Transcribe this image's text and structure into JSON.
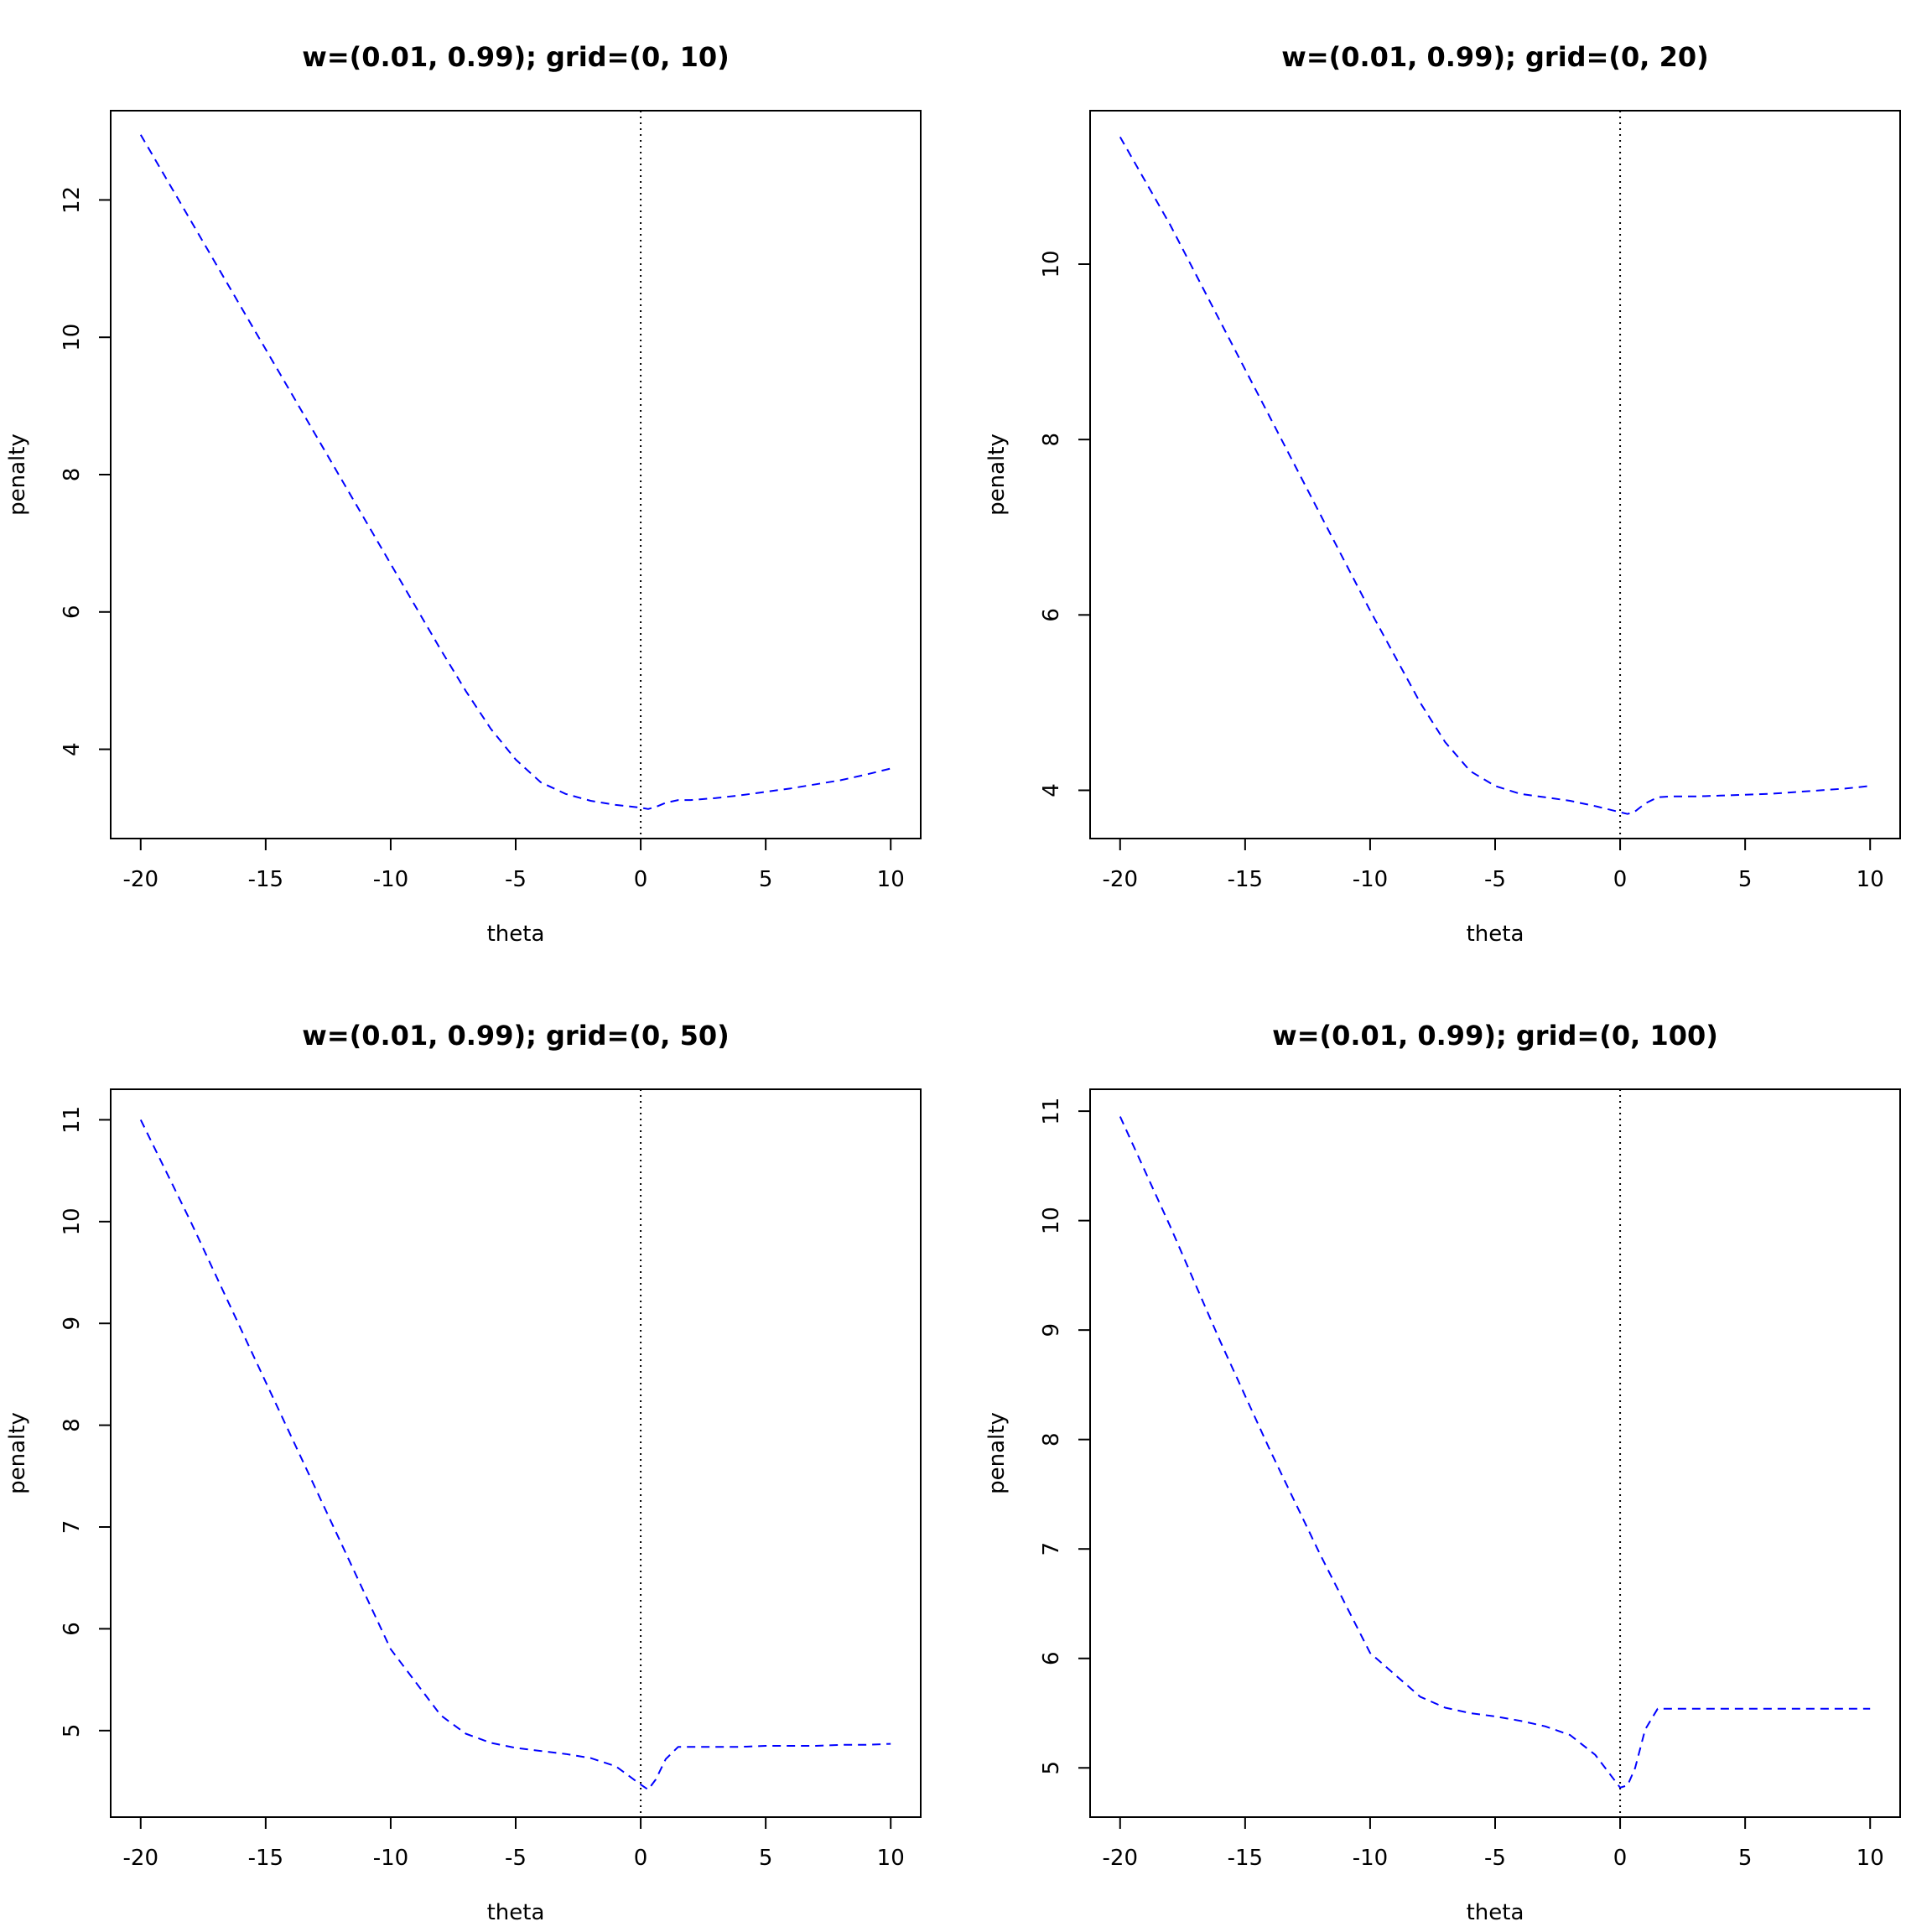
{
  "chart_data": [
    {
      "type": "line",
      "title": "w=(0.01, 0.99); grid=(0, 10)",
      "xlabel": "theta",
      "ylabel": "penalty",
      "xlim": [
        -21.2,
        11.2
      ],
      "ylim": [
        2.7,
        13.3
      ],
      "xticks": [
        -20,
        -15,
        -10,
        -5,
        0,
        5,
        10
      ],
      "yticks": [
        4,
        6,
        8,
        10,
        12
      ],
      "vline": 0,
      "series": [
        {
          "color": "#0000ff",
          "style": "dashed",
          "x": [
            -20,
            -18,
            -16,
            -14,
            -12,
            -10,
            -8,
            -7,
            -6,
            -5,
            -4,
            -3,
            -2,
            -1,
            0,
            0.3,
            0.6,
            1,
            1.5,
            2,
            3,
            4,
            5,
            6,
            7,
            8,
            9,
            10
          ],
          "y": [
            12.95,
            11.7,
            10.45,
            9.2,
            7.95,
            6.7,
            5.45,
            4.85,
            4.3,
            3.85,
            3.52,
            3.35,
            3.25,
            3.19,
            3.15,
            3.13,
            3.16,
            3.22,
            3.26,
            3.26,
            3.29,
            3.33,
            3.38,
            3.43,
            3.49,
            3.55,
            3.63,
            3.72
          ]
        }
      ]
    },
    {
      "type": "line",
      "title": "w=(0.01, 0.99); grid=(0, 20)",
      "xlabel": "theta",
      "ylabel": "penalty",
      "xlim": [
        -21.2,
        11.2
      ],
      "ylim": [
        3.45,
        11.75
      ],
      "xticks": [
        -20,
        -15,
        -10,
        -5,
        0,
        5,
        10
      ],
      "yticks": [
        4,
        6,
        8,
        10
      ],
      "vline": 0,
      "series": [
        {
          "color": "#0000ff",
          "style": "dashed",
          "x": [
            -20,
            -18,
            -16,
            -14,
            -12,
            -10,
            -8,
            -7,
            -6,
            -5,
            -4,
            -3,
            -2,
            -1,
            0,
            0.3,
            0.6,
            1,
            1.5,
            2,
            3,
            4,
            5,
            6,
            7,
            8,
            9,
            10
          ],
          "y": [
            11.45,
            10.45,
            9.35,
            8.25,
            7.15,
            6.05,
            5.0,
            4.55,
            4.22,
            4.05,
            3.96,
            3.92,
            3.88,
            3.82,
            3.75,
            3.73,
            3.76,
            3.85,
            3.92,
            3.93,
            3.93,
            3.94,
            3.95,
            3.96,
            3.98,
            4.0,
            4.02,
            4.05
          ]
        }
      ]
    },
    {
      "type": "line",
      "title": "w=(0.01, 0.99); grid=(0, 50)",
      "xlabel": "theta",
      "ylabel": "penalty",
      "xlim": [
        -21.2,
        11.2
      ],
      "ylim": [
        4.15,
        11.3
      ],
      "xticks": [
        -20,
        -15,
        -10,
        -5,
        0,
        5,
        10
      ],
      "yticks": [
        5,
        6,
        7,
        8,
        9,
        10,
        11
      ],
      "vline": 0,
      "series": [
        {
          "color": "#0000ff",
          "style": "dashed",
          "x": [
            -20,
            -18,
            -16,
            -14,
            -12,
            -10,
            -8,
            -7,
            -6,
            -5,
            -4,
            -3,
            -2,
            -1,
            0,
            0.3,
            0.6,
            1,
            1.5,
            2,
            3,
            4,
            5,
            6,
            7,
            8,
            9,
            10
          ],
          "y": [
            11.0,
            10.0,
            8.95,
            7.9,
            6.85,
            5.8,
            5.15,
            4.97,
            4.88,
            4.83,
            4.8,
            4.77,
            4.73,
            4.65,
            4.47,
            4.42,
            4.52,
            4.72,
            4.84,
            4.84,
            4.84,
            4.84,
            4.85,
            4.85,
            4.85,
            4.86,
            4.86,
            4.87
          ]
        }
      ]
    },
    {
      "type": "line",
      "title": "w=(0.01, 0.99); grid=(0, 100)",
      "xlabel": "theta",
      "ylabel": "penalty",
      "xlim": [
        -21.2,
        11.2
      ],
      "ylim": [
        4.55,
        11.2
      ],
      "xticks": [
        -20,
        -15,
        -10,
        -5,
        0,
        5,
        10
      ],
      "yticks": [
        5,
        6,
        7,
        8,
        9,
        10,
        11
      ],
      "vline": 0,
      "series": [
        {
          "color": "#0000ff",
          "style": "dashed",
          "x": [
            -20,
            -18,
            -16,
            -14,
            -12,
            -10,
            -8,
            -7,
            -6,
            -5,
            -4,
            -3,
            -2,
            -1,
            0,
            0.3,
            0.6,
            1,
            1.5,
            2,
            3,
            4,
            5,
            6,
            7,
            8,
            9,
            10
          ],
          "y": [
            10.95,
            9.95,
            8.9,
            7.9,
            6.95,
            6.05,
            5.65,
            5.55,
            5.5,
            5.47,
            5.43,
            5.38,
            5.3,
            5.12,
            4.82,
            4.84,
            5.0,
            5.35,
            5.54,
            5.54,
            5.54,
            5.54,
            5.54,
            5.54,
            5.54,
            5.54,
            5.54,
            5.54
          ]
        }
      ]
    }
  ]
}
